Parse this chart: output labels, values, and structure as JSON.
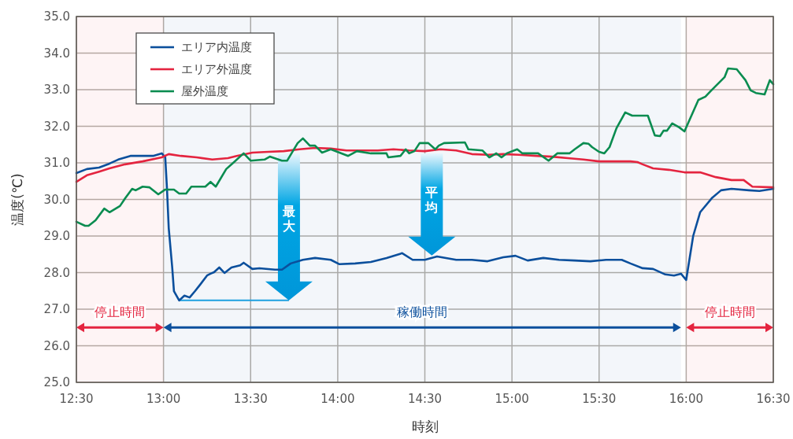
{
  "chart_data": {
    "type": "line",
    "xlabel": "時刻",
    "ylabel": "温度(℃)",
    "xlim": [
      12.5,
      16.5
    ],
    "xticks": [
      {
        "value": 12.5,
        "label": "12:30"
      },
      {
        "value": 13,
        "label": "13:00"
      },
      {
        "value": 13.5,
        "label": "13:30"
      },
      {
        "value": 14,
        "label": "14:00"
      },
      {
        "value": 14.5,
        "label": "14:30"
      },
      {
        "value": 15,
        "label": "15:00"
      },
      {
        "value": 15.5,
        "label": "15:30"
      },
      {
        "value": 16,
        "label": "16:00"
      },
      {
        "value": 16.5,
        "label": "16:30"
      }
    ],
    "ylim": [
      25,
      35
    ],
    "yticks": [
      {
        "value": 25,
        "label": "25.0"
      },
      {
        "value": 26,
        "label": "26.0"
      },
      {
        "value": 27,
        "label": "27.0"
      },
      {
        "value": 28,
        "label": "28.0"
      },
      {
        "value": 29,
        "label": "29.0"
      },
      {
        "value": 30,
        "label": "30.0"
      },
      {
        "value": 31,
        "label": "31.0"
      },
      {
        "value": 32,
        "label": "32.0"
      },
      {
        "value": 33,
        "label": "33.0"
      },
      {
        "value": 34,
        "label": "34.0"
      },
      {
        "value": 35,
        "label": "35.0"
      }
    ],
    "grid": true,
    "legend": "top left",
    "marker": "none",
    "line_style": "solid",
    "series": [
      {
        "name": "エリア内温度",
        "color": "#0b4f9c",
        "x": [
          12.5,
          12.56,
          12.63,
          12.69,
          12.74,
          12.81,
          12.94,
          12.99,
          13.01,
          13.02,
          13.03,
          13.05,
          13.06,
          13.09,
          13.12,
          13.15,
          13.18,
          13.21,
          13.25,
          13.27,
          13.29,
          13.32,
          13.35,
          13.39,
          13.44,
          13.46,
          13.51,
          13.55,
          13.64,
          13.68,
          13.73,
          13.8,
          13.87,
          13.96,
          14.01,
          14.1,
          14.19,
          14.28,
          14.37,
          14.43,
          14.5,
          14.57,
          14.68,
          14.77,
          14.86,
          14.95,
          15.02,
          15.09,
          15.18,
          15.27,
          15.36,
          15.45,
          15.54,
          15.63,
          15.68,
          15.75,
          15.81,
          15.88,
          15.93,
          15.97,
          16.0,
          16.04,
          16.08,
          16.15,
          16.2,
          16.26,
          16.36,
          16.42,
          16.5
        ],
        "values": [
          30.72,
          30.83,
          30.87,
          30.98,
          31.09,
          31.19,
          31.19,
          31.26,
          31.15,
          30.29,
          29.22,
          28.14,
          27.49,
          27.24,
          27.37,
          27.32,
          27.49,
          27.67,
          27.92,
          27.97,
          28.01,
          28.14,
          27.99,
          28.14,
          28.2,
          28.27,
          28.1,
          28.12,
          28.08,
          28.08,
          28.25,
          28.35,
          28.4,
          28.35,
          28.23,
          28.25,
          28.29,
          28.4,
          28.53,
          28.35,
          28.35,
          28.44,
          28.35,
          28.35,
          28.31,
          28.42,
          28.46,
          28.33,
          28.4,
          28.35,
          28.33,
          28.31,
          28.35,
          28.35,
          28.25,
          28.12,
          28.1,
          27.95,
          27.92,
          27.97,
          27.8,
          29.0,
          29.65,
          30.05,
          30.25,
          30.29,
          30.25,
          30.23,
          30.29
        ]
      },
      {
        "name": "エリア外温度",
        "color": "#e4243f",
        "x": [
          12.5,
          12.56,
          12.63,
          12.69,
          12.78,
          12.88,
          12.99,
          13.03,
          13.1,
          13.19,
          13.28,
          13.37,
          13.42,
          13.51,
          13.6,
          13.69,
          13.78,
          13.87,
          13.96,
          14.05,
          14.14,
          14.23,
          14.32,
          14.41,
          14.5,
          14.59,
          14.68,
          14.77,
          14.86,
          14.95,
          15.04,
          15.14,
          15.23,
          15.32,
          15.41,
          15.5,
          15.59,
          15.68,
          15.72,
          15.75,
          15.81,
          15.9,
          15.99,
          16.08,
          16.17,
          16.26,
          16.33,
          16.38,
          16.5
        ],
        "values": [
          30.48,
          30.66,
          30.76,
          30.85,
          30.96,
          31.04,
          31.15,
          31.24,
          31.19,
          31.15,
          31.09,
          31.13,
          31.19,
          31.28,
          31.3,
          31.32,
          31.37,
          31.41,
          31.39,
          31.34,
          31.34,
          31.34,
          31.37,
          31.34,
          31.32,
          31.37,
          31.34,
          31.24,
          31.22,
          31.24,
          31.22,
          31.19,
          31.17,
          31.13,
          31.09,
          31.04,
          31.04,
          31.04,
          31.02,
          30.96,
          30.85,
          30.81,
          30.74,
          30.74,
          30.61,
          30.53,
          30.53,
          30.35,
          30.33
        ]
      },
      {
        "name": "屋外温度",
        "color": "#0a8c50",
        "x": [
          12.5,
          12.55,
          12.57,
          12.61,
          12.66,
          12.69,
          12.75,
          12.78,
          12.82,
          12.84,
          12.88,
          12.92,
          12.97,
          13.01,
          13.06,
          13.09,
          13.13,
          13.16,
          13.24,
          13.27,
          13.3,
          13.36,
          13.4,
          13.46,
          13.5,
          13.58,
          13.61,
          13.68,
          13.71,
          13.77,
          13.8,
          13.84,
          13.87,
          13.91,
          13.96,
          14.06,
          14.11,
          14.19,
          14.28,
          14.29,
          14.36,
          14.39,
          14.41,
          14.44,
          14.47,
          14.52,
          14.56,
          14.58,
          14.61,
          14.73,
          14.75,
          14.83,
          14.87,
          14.91,
          14.94,
          14.97,
          15.03,
          15.06,
          15.15,
          15.21,
          15.26,
          15.33,
          15.36,
          15.41,
          15.44,
          15.46,
          15.5,
          15.53,
          15.56,
          15.6,
          15.65,
          15.69,
          15.78,
          15.82,
          15.85,
          15.87,
          15.89,
          15.92,
          15.96,
          15.99,
          16.07,
          16.11,
          16.14,
          16.22,
          16.24,
          16.29,
          16.34,
          16.37,
          16.4,
          16.45,
          16.48,
          16.5
        ],
        "values": [
          29.39,
          29.28,
          29.28,
          29.43,
          29.75,
          29.65,
          29.82,
          30.03,
          30.29,
          30.25,
          30.35,
          30.33,
          30.14,
          30.27,
          30.27,
          30.16,
          30.16,
          30.35,
          30.35,
          30.48,
          30.35,
          30.83,
          31.0,
          31.26,
          31.06,
          31.09,
          31.17,
          31.06,
          31.06,
          31.54,
          31.67,
          31.47,
          31.47,
          31.28,
          31.37,
          31.19,
          31.32,
          31.26,
          31.26,
          31.15,
          31.19,
          31.37,
          31.26,
          31.32,
          31.54,
          31.54,
          31.37,
          31.47,
          31.54,
          31.56,
          31.37,
          31.34,
          31.15,
          31.26,
          31.15,
          31.26,
          31.37,
          31.26,
          31.26,
          31.06,
          31.26,
          31.26,
          31.37,
          31.54,
          31.52,
          31.43,
          31.3,
          31.26,
          31.43,
          31.95,
          32.38,
          32.29,
          32.29,
          31.75,
          31.73,
          31.88,
          31.88,
          32.08,
          31.97,
          31.86,
          32.72,
          32.81,
          32.96,
          33.34,
          33.58,
          33.56,
          33.26,
          32.98,
          32.91,
          32.87,
          33.26,
          33.15
        ]
      }
    ],
    "bands": [
      {
        "axis": "x",
        "from": 12.5,
        "to": 13.0,
        "label": "停止時間",
        "color": "#e4243f"
      },
      {
        "axis": "x",
        "from": 13.0,
        "to": 15.97,
        "label": "稼働時間",
        "color": "#0b4f9c"
      },
      {
        "axis": "x",
        "from": 16.0,
        "to": 16.5,
        "label": "停止時間",
        "color": "#e4243f"
      }
    ],
    "annotations": [
      "最大",
      "平均"
    ]
  }
}
